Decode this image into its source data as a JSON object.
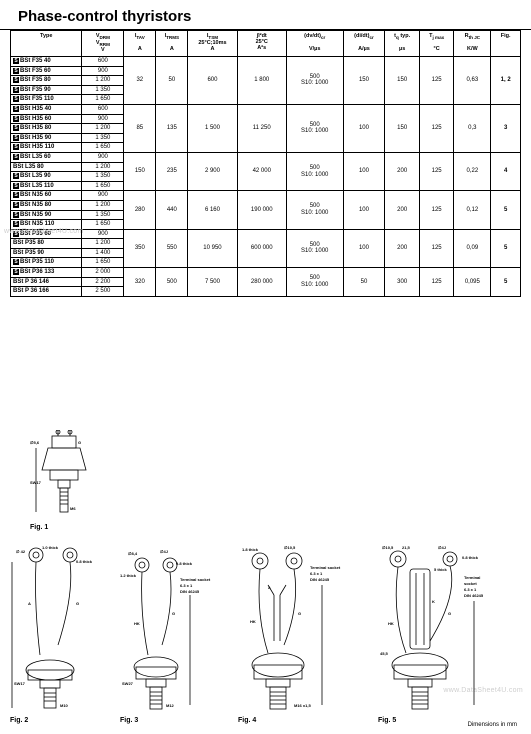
{
  "title": "Phase-control thyristors",
  "columns": [
    {
      "key": "type",
      "html": "Type"
    },
    {
      "key": "vdrm",
      "html": "V<sub>DRM</sub><br>V<sub>RRM</sub><br>V"
    },
    {
      "key": "itav",
      "html": "I<sub>TAV</sub><br><br>A"
    },
    {
      "key": "itrms",
      "html": "I<sub>TRMS</sub><br><br>A"
    },
    {
      "key": "itsm",
      "html": "I<sub>TSM</sub><br>25°C;10ms<br>A"
    },
    {
      "key": "i2t",
      "html": "∫i²dt<br>25°C<br>A²s"
    },
    {
      "key": "dvdt",
      "html": "(dv/dt)<sub>cr</sub><br><br>V/µs"
    },
    {
      "key": "didt",
      "html": "(di/dt)<sub>cr</sub><br><br>A/µs"
    },
    {
      "key": "tq",
      "html": "t<sub>q</sub> typ.<br><br>µs"
    },
    {
      "key": "tj",
      "html": "T<sub>j max</sub><br><br>°C"
    },
    {
      "key": "rth",
      "html": "R<sub>th JC</sub><br><br>K/W"
    },
    {
      "key": "fig",
      "html": "Fig."
    }
  ],
  "groups": [
    {
      "itav": "32",
      "itrms": "50",
      "itsm": "600",
      "i2t": "1 800",
      "dvdt": "500<br>S10: 1000",
      "didt": "150",
      "tq": "150",
      "tj": "125",
      "rth": "0,63",
      "fig": "1, 2",
      "rows": [
        {
          "s": true,
          "type": "BSt F35  40",
          "vdrm": "600"
        },
        {
          "s": true,
          "type": "BSt F35  60",
          "vdrm": "900"
        },
        {
          "s": true,
          "type": "BSt F35  80",
          "vdrm": "1 200"
        },
        {
          "s": true,
          "type": "BSt F35  90",
          "vdrm": "1 350"
        },
        {
          "s": true,
          "type": "BSt F35 110",
          "vdrm": "1 650"
        }
      ]
    },
    {
      "itav": "85",
      "itrms": "135",
      "itsm": "1 500",
      "i2t": "11 250",
      "dvdt": "500<br>S10: 1000",
      "didt": "100",
      "tq": "150",
      "tj": "125",
      "rth": "0,3",
      "fig": "3",
      "rows": [
        {
          "s": true,
          "type": "BSt H35  40",
          "vdrm": "600"
        },
        {
          "s": true,
          "type": "BSt H35  60",
          "vdrm": "900"
        },
        {
          "s": true,
          "type": "BSt H35  80",
          "vdrm": "1 200"
        },
        {
          "s": true,
          "type": "BSt H35  90",
          "vdrm": "1 350"
        },
        {
          "s": true,
          "type": "BSt H35 110",
          "vdrm": "1 650"
        }
      ]
    },
    {
      "itav": "150",
      "itrms": "235",
      "itsm": "2 900",
      "i2t": "42 000",
      "dvdt": "500<br>S10: 1000",
      "didt": "100",
      "tq": "200",
      "tj": "125",
      "rth": "0,22",
      "fig": "4",
      "rows": [
        {
          "s": true,
          "type": "BSt L35  60",
          "vdrm": "900"
        },
        {
          "s": false,
          "type": "BSt L35  80",
          "vdrm": "1 200"
        },
        {
          "s": true,
          "type": "BSt L35  90",
          "vdrm": "1 350"
        },
        {
          "s": true,
          "type": "BSt L35 110",
          "vdrm": "1 650"
        }
      ]
    },
    {
      "itav": "280",
      "itrms": "440",
      "itsm": "6 160",
      "i2t": "190 000",
      "dvdt": "500<br>S10: 1000",
      "didt": "100",
      "tq": "200",
      "tj": "125",
      "rth": "0,12",
      "fig": "5",
      "rows": [
        {
          "s": true,
          "type": "BSt N35  60",
          "vdrm": "900"
        },
        {
          "s": true,
          "type": "BSt N35  80",
          "vdrm": "1 200"
        },
        {
          "s": true,
          "type": "BSt N35  90",
          "vdrm": "1 350"
        },
        {
          "s": true,
          "type": "BSt N35 110",
          "vdrm": "1 650"
        }
      ]
    },
    {
      "itav": "350",
      "itrms": "550",
      "itsm": "10 950",
      "i2t": "600 000",
      "dvdt": "500<br>S10: 1000",
      "didt": "100",
      "tq": "200",
      "tj": "125",
      "rth": "0,09",
      "fig": "5",
      "rows": [
        {
          "s": true,
          "type": "BSt P35  60",
          "vdrm": "900"
        },
        {
          "s": false,
          "type": "BSt P35  80",
          "vdrm": "1 200"
        },
        {
          "s": false,
          "type": "BSt P35  90",
          "vdrm": "1 400"
        },
        {
          "s": true,
          "type": "BSt P35 110",
          "vdrm": "1 650"
        }
      ]
    },
    {
      "itav": "320",
      "itrms": "500",
      "itsm": "7 500",
      "i2t": "280 000",
      "dvdt": "500<br>S10: 1000",
      "didt": "50",
      "tq": "300",
      "tj": "125",
      "rth": "0,095",
      "fig": "5",
      "rows": [
        {
          "s": true,
          "type": "BSt P36 133",
          "vdrm": "2 000"
        },
        {
          "s": false,
          "type": "BSt P 36 146",
          "vdrm": "2 200"
        },
        {
          "s": false,
          "type": "BSt P 36 166",
          "vdrm": "2 500"
        }
      ]
    }
  ],
  "figures": {
    "fig1": "Fig. 1",
    "fig2": "Fig. 2",
    "fig3": "Fig. 3",
    "fig4": "Fig. 4",
    "fig5": "Fig. 5",
    "dimnote": "Dimensions in mm",
    "annot": {
      "thick10": "1.0 thick",
      "thick08": "0.8 thick",
      "thick12": "1.2 thick",
      "thick18": "1.8 thick",
      "thick5": "5 thick",
      "terminal": "Terminal socket\n6.3 x 1\nDIN 46245",
      "d56": "∅5,6",
      "d84": "∅8,4",
      "d4j": "∅4J",
      "d105": "∅10,5",
      "sw17": "SW17",
      "sw27": "SW27",
      "m10": "M10",
      "m12": "M12",
      "m16": "M16 x1,5",
      "hk": "HK",
      "g": "G",
      "a": "A",
      "k": "K",
      "d42": "∅ 42",
      "d215": "21,5",
      "d455": "45,5"
    }
  },
  "watermarks": [
    "www.DataSheet4U.com",
    "www.DataSheet4U.com"
  ],
  "colors": {
    "line": "#000000",
    "bg": "#ffffff",
    "wm": "#cfcfcf"
  }
}
